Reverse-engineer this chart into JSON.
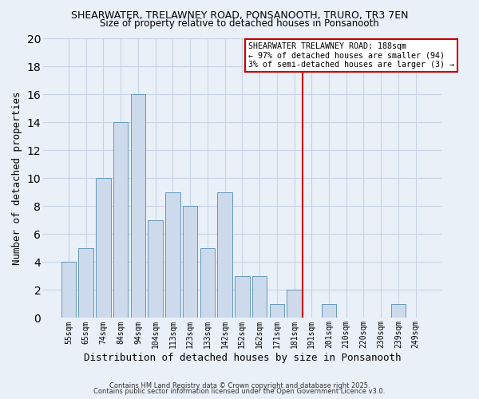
{
  "title": "SHEARWATER, TRELAWNEY ROAD, PONSANOOTH, TRURO, TR3 7EN",
  "subtitle": "Size of property relative to detached houses in Ponsanooth",
  "xlabel": "Distribution of detached houses by size in Ponsanooth",
  "ylabel": "Number of detached properties",
  "bar_labels": [
    "55sqm",
    "65sqm",
    "74sqm",
    "84sqm",
    "94sqm",
    "104sqm",
    "113sqm",
    "123sqm",
    "133sqm",
    "142sqm",
    "152sqm",
    "162sqm",
    "171sqm",
    "181sqm",
    "191sqm",
    "201sqm",
    "210sqm",
    "220sqm",
    "230sqm",
    "239sqm",
    "249sqm"
  ],
  "bar_values": [
    4,
    5,
    10,
    14,
    16,
    7,
    9,
    8,
    5,
    9,
    3,
    3,
    1,
    2,
    0,
    1,
    0,
    0,
    0,
    1,
    0
  ],
  "bar_color": "#ccdaeb",
  "bar_edge_color": "#6699bb",
  "vline_color": "#cc0000",
  "ylim": [
    0,
    20
  ],
  "yticks": [
    0,
    2,
    4,
    6,
    8,
    10,
    12,
    14,
    16,
    18,
    20
  ],
  "grid_color": "#c8d4e4",
  "bg_color": "#eaf0f8",
  "annotation_text": "SHEARWATER TRELAWNEY ROAD: 188sqm\n← 97% of detached houses are smaller (94)\n3% of semi-detached houses are larger (3) →",
  "annotation_box_edge": "#cc0000",
  "footer1": "Contains HM Land Registry data © Crown copyright and database right 2025.",
  "footer2": "Contains public sector information licensed under the Open Government Licence v3.0."
}
